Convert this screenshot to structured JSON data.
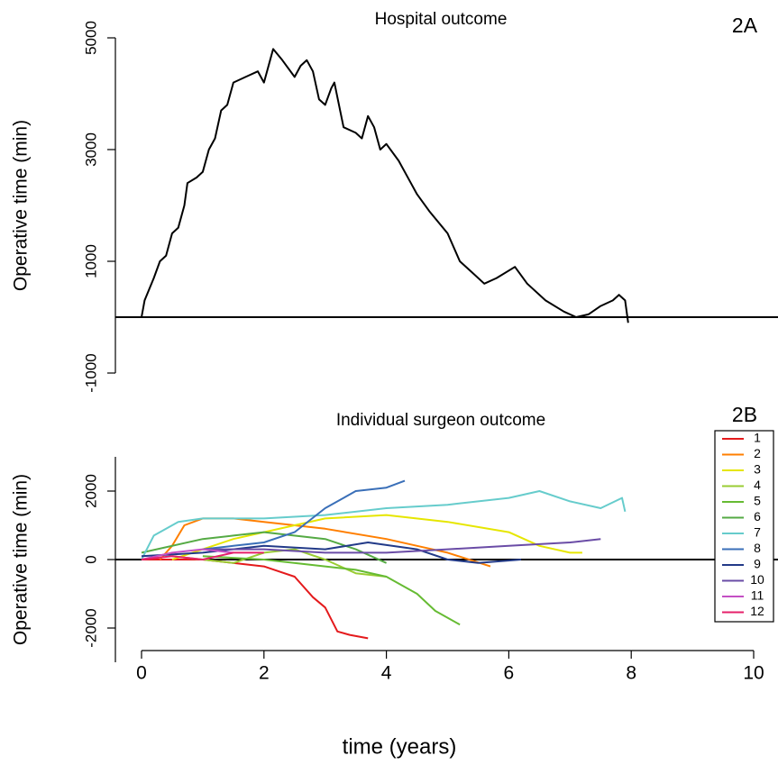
{
  "chart_data": [
    {
      "type": "line",
      "title": "Hospital outcome",
      "annotation": "2A",
      "ylabel": "Operative time (min)",
      "xlim": [
        0,
        10
      ],
      "ylim": [
        -1000,
        5000
      ],
      "yticks": [
        -1000,
        1000,
        3000,
        5000
      ],
      "hline": 0,
      "series": [
        {
          "color": "#000000",
          "x": [
            0,
            0.05,
            0.2,
            0.3,
            0.4,
            0.5,
            0.6,
            0.7,
            0.75,
            0.9,
            1.0,
            1.1,
            1.2,
            1.3,
            1.4,
            1.5,
            1.7,
            1.9,
            2.0,
            2.1,
            2.15,
            2.3,
            2.5,
            2.6,
            2.7,
            2.8,
            2.9,
            3.0,
            3.1,
            3.15,
            3.3,
            3.5,
            3.6,
            3.7,
            3.8,
            3.9,
            4.0,
            4.2,
            4.4,
            4.5,
            4.7,
            5.0,
            5.2,
            5.4,
            5.6,
            5.8,
            6.1,
            6.3,
            6.6,
            6.9,
            7.1,
            7.3,
            7.5,
            7.7,
            7.8,
            7.9,
            7.95
          ],
          "values": [
            0,
            300,
            700,
            1000,
            1100,
            1500,
            1600,
            2000,
            2400,
            2500,
            2600,
            3000,
            3200,
            3700,
            3800,
            4200,
            4300,
            4400,
            4200,
            4600,
            4800,
            4600,
            4300,
            4500,
            4600,
            4400,
            3900,
            3800,
            4100,
            4200,
            3400,
            3300,
            3200,
            3600,
            3400,
            3000,
            3100,
            2800,
            2400,
            2200,
            1900,
            1500,
            1000,
            800,
            600,
            700,
            900,
            600,
            300,
            100,
            0,
            50,
            200,
            300,
            400,
            300,
            -100
          ]
        }
      ]
    },
    {
      "type": "line",
      "title": "Individual surgeon outcome",
      "annotation": "2B",
      "ylabel": "Operative time (min)",
      "xlabel": "time (years)",
      "xlim": [
        0,
        10
      ],
      "xticks": [
        0,
        2,
        4,
        6,
        8,
        10
      ],
      "ylim": [
        -3000,
        3000
      ],
      "yticks": [
        -2000,
        0,
        2000
      ],
      "hline": 0,
      "legend": "right",
      "series": [
        {
          "name": "1",
          "color": "#e41a1c",
          "x": [
            0,
            1,
            2,
            2.5,
            2.8,
            3.0,
            3.2,
            3.4,
            3.7
          ],
          "values": [
            0,
            0,
            -200,
            -500,
            -1100,
            -1400,
            -2100,
            -2200,
            -2300
          ]
        },
        {
          "name": "2",
          "color": "#ff7f00",
          "x": [
            0.3,
            0.5,
            0.7,
            1,
            1.5,
            2,
            3,
            4,
            4.5,
            5,
            5.7
          ],
          "values": [
            0,
            400,
            1000,
            1200,
            1200,
            1100,
            900,
            600,
            400,
            200,
            -200
          ]
        },
        {
          "name": "3",
          "color": "#e6e600",
          "x": [
            0.5,
            1.5,
            2,
            3,
            4,
            5,
            6,
            6.5,
            7,
            7.2
          ],
          "values": [
            0,
            600,
            800,
            1200,
            1300,
            1100,
            800,
            400,
            200,
            200
          ]
        },
        {
          "name": "4",
          "color": "#99cc33",
          "x": [
            0.5,
            1,
            1.5,
            2,
            2.5,
            3,
            3.5,
            4
          ],
          "values": [
            100,
            0,
            -100,
            200,
            300,
            0,
            -400,
            -500
          ]
        },
        {
          "name": "5",
          "color": "#66bb33",
          "x": [
            1,
            2,
            3,
            3.5,
            4,
            4.5,
            4.8,
            5.2
          ],
          "values": [
            100,
            0,
            -200,
            -300,
            -500,
            -1000,
            -1500,
            -1900
          ]
        },
        {
          "name": "6",
          "color": "#55aa44",
          "x": [
            0,
            1,
            1.5,
            2,
            3,
            3.5,
            4
          ],
          "values": [
            200,
            600,
            700,
            800,
            600,
            300,
            -100
          ]
        },
        {
          "name": "7",
          "color": "#66cccc",
          "x": [
            0,
            0.2,
            0.6,
            1,
            2,
            3,
            4,
            5,
            6,
            6.5,
            7,
            7.5,
            7.85,
            7.9
          ],
          "values": [
            0,
            700,
            1100,
            1200,
            1200,
            1300,
            1500,
            1600,
            1800,
            2000,
            1700,
            1500,
            1800,
            1400
          ]
        },
        {
          "name": "8",
          "color": "#3a6fb8",
          "x": [
            1,
            1.5,
            2,
            2.5,
            3,
            3.3,
            3.5,
            4,
            4.3
          ],
          "values": [
            300,
            400,
            500,
            800,
            1500,
            1800,
            2000,
            2100,
            2300
          ]
        },
        {
          "name": "9",
          "color": "#223a88",
          "x": [
            0,
            1,
            2,
            3,
            3.7,
            4.5,
            5,
            5.5,
            6.2
          ],
          "values": [
            100,
            200,
            400,
            300,
            500,
            300,
            0,
            -100,
            0
          ]
        },
        {
          "name": "10",
          "color": "#6a4ca6",
          "x": [
            1,
            2,
            3,
            4,
            5,
            6,
            7,
            7.5
          ],
          "values": [
            300,
            300,
            200,
            200,
            300,
            400,
            500,
            600
          ]
        },
        {
          "name": "11",
          "color": "#c44fc4",
          "x": [
            0,
            0.5,
            1,
            1.5
          ],
          "values": [
            0,
            200,
            300,
            200
          ]
        },
        {
          "name": "12",
          "color": "#e6206a",
          "x": [
            0,
            0.5,
            1,
            1.5,
            2
          ],
          "values": [
            0,
            100,
            0,
            200,
            200
          ]
        }
      ]
    }
  ]
}
